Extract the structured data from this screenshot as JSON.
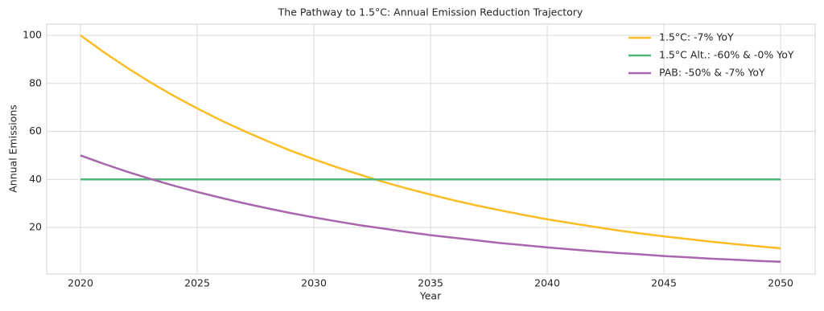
{
  "chart_data": {
    "type": "line",
    "title": "The Pathway to 1.5°C: Annual Emission Reduction Trajectory",
    "xlabel": "Year",
    "ylabel": "Annual Emissions",
    "x": [
      2020,
      2021,
      2022,
      2023,
      2024,
      2025,
      2026,
      2027,
      2028,
      2029,
      2030,
      2031,
      2032,
      2033,
      2034,
      2035,
      2036,
      2037,
      2038,
      2039,
      2040,
      2041,
      2042,
      2043,
      2044,
      2045,
      2046,
      2047,
      2048,
      2049,
      2050
    ],
    "series": [
      {
        "name": "1.5°C: -7% YoY",
        "color": "#fbbc24",
        "values": [
          100,
          93,
          86.5,
          80.4,
          74.8,
          69.6,
          64.7,
          60.2,
          56,
          52,
          48.4,
          45,
          41.9,
          38.9,
          36.2,
          33.7,
          31.3,
          29.1,
          27.1,
          25.2,
          23.4,
          21.8,
          20.3,
          18.8,
          17.5,
          16.3,
          15.2,
          14.1,
          13.1,
          12.2,
          11.3
        ]
      },
      {
        "name": "1.5°C Alt.: -60% & -0% YoY",
        "color": "#4db87a",
        "values": [
          40,
          40,
          40,
          40,
          40,
          40,
          40,
          40,
          40,
          40,
          40,
          40,
          40,
          40,
          40,
          40,
          40,
          40,
          40,
          40,
          40,
          40,
          40,
          40,
          40,
          40,
          40,
          40,
          40,
          40,
          40
        ]
      },
      {
        "name": "PAB: -50% & -7% YoY",
        "color": "#a866ac",
        "values": [
          50,
          46.5,
          43.2,
          40.2,
          37.4,
          34.8,
          32.4,
          30.1,
          28,
          26,
          24.2,
          22.5,
          20.9,
          19.5,
          18.1,
          16.8,
          15.7,
          14.6,
          13.5,
          12.6,
          11.7,
          10.9,
          10.1,
          9.4,
          8.8,
          8.1,
          7.6,
          7,
          6.6,
          6.1,
          5.7
        ]
      }
    ],
    "xlim": [
      2018.55,
      2051.48
    ],
    "xticks": [
      2020,
      2025,
      2030,
      2035,
      2040,
      2045,
      2050
    ],
    "ylim": [
      0.6,
      104.7
    ],
    "yticks": [
      20,
      40,
      60,
      80,
      100
    ],
    "grid": true,
    "legend": "upper-right"
  }
}
